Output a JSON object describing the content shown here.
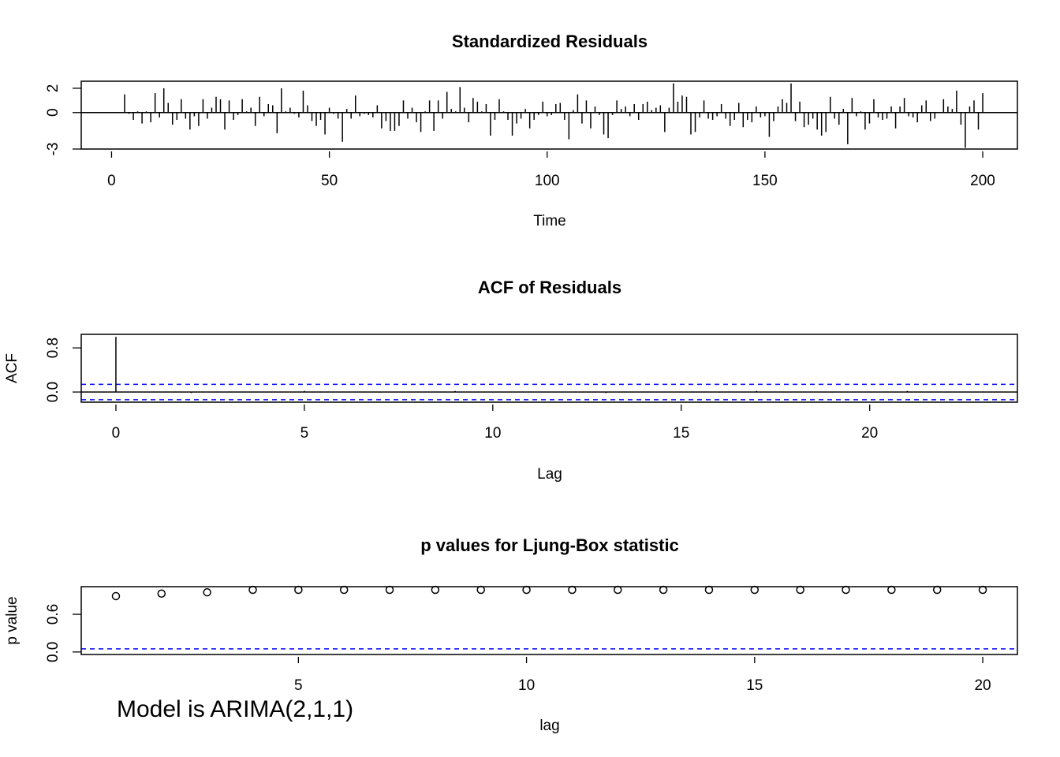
{
  "chart_data": [
    {
      "type": "spike",
      "title": "Standardized Residuals",
      "xlabel": "Time",
      "x": [
        1,
        2,
        3,
        4,
        5,
        6,
        7,
        8,
        9,
        10,
        11,
        12,
        13,
        14,
        15,
        16,
        17,
        18,
        19,
        20,
        21,
        22,
        23,
        24,
        25,
        26,
        27,
        28,
        29,
        30,
        31,
        32,
        33,
        34,
        35,
        36,
        37,
        38,
        39,
        40,
        41,
        42,
        43,
        44,
        45,
        46,
        47,
        48,
        49,
        50,
        51,
        52,
        53,
        54,
        55,
        56,
        57,
        58,
        59,
        60,
        61,
        62,
        63,
        64,
        65,
        66,
        67,
        68,
        69,
        70,
        71,
        72,
        73,
        74,
        75,
        76,
        77,
        78,
        79,
        80,
        81,
        82,
        83,
        84,
        85,
        86,
        87,
        88,
        89,
        90,
        91,
        92,
        93,
        94,
        95,
        96,
        97,
        98,
        99,
        100,
        101,
        102,
        103,
        104,
        105,
        106,
        107,
        108,
        109,
        110,
        111,
        112,
        113,
        114,
        115,
        116,
        117,
        118,
        119,
        120,
        121,
        122,
        123,
        124,
        125,
        126,
        127,
        128,
        129,
        130,
        131,
        132,
        133,
        134,
        135,
        136,
        137,
        138,
        139,
        140,
        141,
        142,
        143,
        144,
        145,
        146,
        147,
        148,
        149,
        150,
        151,
        152,
        153,
        154,
        155,
        156,
        157,
        158,
        159,
        160,
        161,
        162,
        163,
        164,
        165,
        166,
        167,
        168,
        169,
        170,
        171,
        172,
        173,
        174,
        175,
        176,
        177,
        178,
        179,
        180,
        181,
        182,
        183,
        184,
        185,
        186,
        187,
        188,
        189,
        190,
        191,
        192,
        193,
        194,
        195,
        196,
        197,
        198,
        199,
        200
      ],
      "values": [
        0.05,
        0,
        1.5,
        -0.1,
        -0.6,
        0.1,
        -0.9,
        0.1,
        -0.8,
        1.6,
        -0.4,
        2.0,
        0.8,
        -1.0,
        -0.6,
        1.1,
        -0.5,
        -1.4,
        -0.3,
        -1.1,
        1.1,
        -0.5,
        0.4,
        1.3,
        1.1,
        -1.4,
        1.0,
        -0.6,
        -0.2,
        1.1,
        0.1,
        0.4,
        -1.1,
        1.3,
        -0.3,
        0.7,
        0.6,
        -1.7,
        2.0,
        0.1,
        0.4,
        -0.1,
        -0.4,
        1.8,
        0.6,
        -0.7,
        -1.1,
        -0.6,
        -1.8,
        0.4,
        -0.1,
        -0.5,
        -2.4,
        0.3,
        -0.5,
        1.4,
        -0.3,
        -0.1,
        -0.2,
        -0.4,
        0.6,
        -1.3,
        -0.7,
        -1.5,
        -1.5,
        -1.1,
        1.0,
        -0.5,
        0.4,
        -0.8,
        -1.6,
        0.1,
        1.0,
        -1.5,
        1.0,
        -0.5,
        1.7,
        0.3,
        0.1,
        2.1,
        0.4,
        -0.8,
        1.2,
        0.9,
        0.1,
        0.7,
        -1.9,
        -0.6,
        1.1,
        0.1,
        -0.6,
        -1.9,
        -0.9,
        -0.5,
        0.3,
        -1.3,
        -0.6,
        -0.2,
        0.9,
        -0.3,
        -0.2,
        0.7,
        0.8,
        -0.6,
        -2.2,
        0.2,
        1.5,
        -0.9,
        1.0,
        -1.3,
        0.5,
        -0.2,
        -1.8,
        -2.1,
        -0.2,
        1.0,
        0.3,
        0.5,
        -0.3,
        0.7,
        -0.6,
        0.7,
        0.9,
        0.2,
        0.4,
        0.6,
        -1.6,
        0.4,
        2.4,
        0.9,
        1.4,
        1.3,
        -1.8,
        -1.6,
        -0.4,
        1.0,
        -0.5,
        -0.6,
        -0.3,
        0.7,
        -0.5,
        -1.1,
        -0.6,
        0.8,
        -1.2,
        -0.6,
        -0.8,
        0.5,
        -0.4,
        -0.3,
        -2.0,
        -0.7,
        0.5,
        1.1,
        0.8,
        2.4,
        -0.7,
        0.9,
        -1.2,
        -1.0,
        -0.5,
        -1.4,
        -1.9,
        -1.6,
        1.3,
        -0.5,
        -1.0,
        0.3,
        -2.6,
        1.2,
        -0.3,
        0.1,
        -1.4,
        -0.9,
        1.1,
        -0.4,
        -0.6,
        -0.5,
        0.5,
        -1.3,
        0.5,
        1.2,
        -0.3,
        -0.4,
        -0.8,
        0.6,
        1.0,
        -0.7,
        -0.5,
        0.0,
        1.1,
        0.5,
        0.3,
        1.8,
        -1.0,
        -2.9,
        0.5,
        1.0,
        -1.4,
        1.6
      ],
      "color": "#000000",
      "xlim": [
        -6.96,
        207.96
      ],
      "xticks": [
        0,
        50,
        100,
        150,
        200
      ],
      "ylim": [
        -3.0,
        2.58
      ],
      "yticks": [
        -3,
        0,
        2
      ]
    },
    {
      "type": "acf",
      "title": "ACF of Residuals",
      "xlabel": "Lag",
      "ylabel": "ACF",
      "x": [
        0,
        1,
        2,
        3,
        4,
        5,
        6,
        7,
        8,
        9,
        10,
        11,
        12,
        13,
        14,
        15,
        16,
        17,
        18,
        19,
        20,
        21,
        22,
        23
      ],
      "values": [
        1,
        0.01,
        -0.02,
        0.01,
        -0.01,
        0.02,
        0.01,
        -0.01,
        0.0,
        0.02,
        -0.01,
        0.01,
        0.0,
        -0.02,
        0.01,
        0.01,
        -0.01,
        0.02,
        0.0,
        -0.01,
        0.01,
        0.02,
        -0.01,
        0.01
      ],
      "color": "#000000",
      "ci_lines": [
        -0.1386,
        0.1386
      ],
      "ci_color": "#0000ff",
      "xlim": [
        -0.92,
        23.92
      ],
      "xticks": [
        0,
        5,
        10,
        15,
        20
      ],
      "ylim": [
        -0.184,
        1.0455
      ],
      "yticks": [
        {
          "value": 0,
          "label": "0.0"
        },
        {
          "value": 0.8,
          "label": "0.8"
        }
      ]
    },
    {
      "type": "scatter",
      "title": "p values for Ljung-Box statistic",
      "xlabel": "lag",
      "ylabel": "p value",
      "x": [
        1,
        2,
        3,
        4,
        5,
        6,
        7,
        8,
        9,
        10,
        11,
        12,
        13,
        14,
        15,
        16,
        17,
        18,
        19,
        20
      ],
      "values": [
        0.89,
        0.93,
        0.95,
        0.99,
        0.99,
        0.99,
        0.99,
        0.99,
        0.99,
        0.99,
        0.99,
        0.99,
        0.99,
        0.99,
        0.99,
        0.99,
        0.99,
        0.99,
        0.99,
        0.99
      ],
      "color": "#000000",
      "ci_lines": [
        0.05
      ],
      "ci_color": "#0000ff",
      "xlim": [
        0.24,
        20.76
      ],
      "xticks": [
        5,
        10,
        15,
        20
      ],
      "ylim": [
        -0.04,
        1.04
      ],
      "yticks": [
        {
          "value": 0,
          "label": "0.0"
        },
        {
          "value": 0.6,
          "label": "0.6"
        }
      ],
      "annotation": "Model is ARIMA(2,1,1)",
      "annotation_color": "#ee1111"
    }
  ]
}
